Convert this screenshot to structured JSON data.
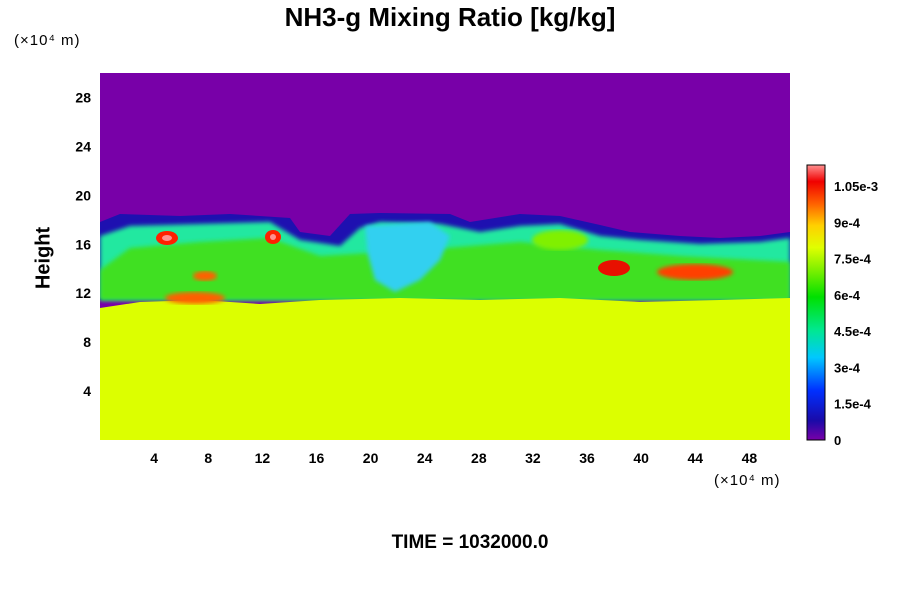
{
  "chart_data": {
    "type": "heatmap",
    "title": "NH3-g Mixing Ratio [kg/kg]",
    "ylabel": "Height",
    "x_unit_label": "(×10⁴ m)",
    "y_unit_label": "(×10⁴ m)",
    "xlim": [
      0,
      51
    ],
    "ylim": [
      0,
      30
    ],
    "x_ticks": [
      "4",
      "8",
      "12",
      "16",
      "20",
      "24",
      "28",
      "32",
      "36",
      "40",
      "44",
      "48"
    ],
    "y_ticks": [
      "4",
      "8",
      "12",
      "16",
      "20",
      "24",
      "28"
    ],
    "colorbar": {
      "range": [
        0,
        0.0011
      ],
      "labels": [
        "1.05e-3",
        "9e-4",
        "7.5e-4",
        "6e-4",
        "4.5e-4",
        "3e-4",
        "1.5e-4",
        "0"
      ]
    },
    "field_description_values": {
      "above_cloud_top_value": 0,
      "lower_layer_value": 0.00076,
      "cloud_top_height_range": [
        16,
        18
      ],
      "lower_layer_top_height": 11
    },
    "time_label": "TIME = 1032000.0"
  }
}
